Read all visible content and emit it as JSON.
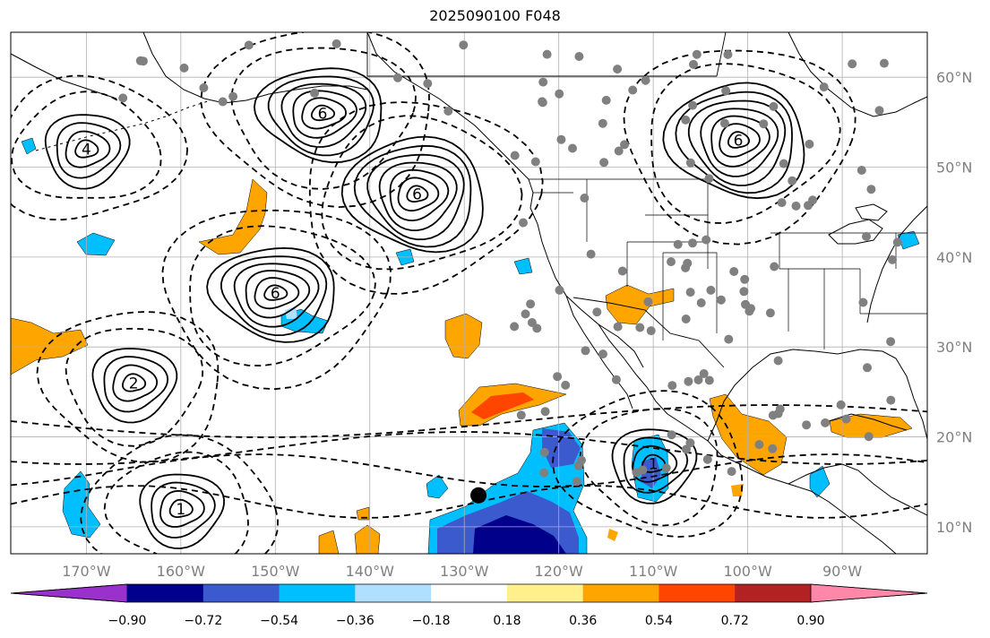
{
  "title": "2025090100 F048",
  "map": {
    "extent": {
      "lon": [
        -178,
        -81
      ],
      "lat": [
        7,
        65
      ]
    },
    "grid": true,
    "lon_ticks": [
      {
        "value": -170,
        "label": "170°W"
      },
      {
        "value": -160,
        "label": "160°W"
      },
      {
        "value": -150,
        "label": "150°W"
      },
      {
        "value": -140,
        "label": "140°W"
      },
      {
        "value": -130,
        "label": "130°W"
      },
      {
        "value": -120,
        "label": "120°W"
      },
      {
        "value": -110,
        "label": "110°W"
      },
      {
        "value": -100,
        "label": "100°W"
      },
      {
        "value": -90,
        "label": "90°W"
      }
    ],
    "lat_ticks": [
      {
        "value": 10,
        "label": "10°N"
      },
      {
        "value": 20,
        "label": "20°N"
      },
      {
        "value": 30,
        "label": "30°N"
      },
      {
        "value": 40,
        "label": "40°N"
      },
      {
        "value": 50,
        "label": "50°N"
      },
      {
        "value": 60,
        "label": "60°N"
      }
    ],
    "tick_color": "#808080",
    "highs": [
      {
        "lon": -170,
        "lat": 52,
        "label": "4"
      },
      {
        "lon": -135,
        "lat": 47,
        "label": "6"
      },
      {
        "lon": -101,
        "lat": 53,
        "label": "6"
      },
      {
        "lon": -165,
        "lat": 26,
        "label": "2"
      },
      {
        "lon": -110,
        "lat": 17,
        "label": "1"
      },
      {
        "lon": -160,
        "lat": 12,
        "label": "1"
      }
    ],
    "lows": [
      {
        "lon": -150,
        "lat": 36,
        "label": "6"
      },
      {
        "lon": -145,
        "lat": 56,
        "label": "6"
      }
    ],
    "marker": {
      "lon": -128.5,
      "lat": 13.5
    }
  },
  "colorbar": {
    "colors": [
      "#9932cc",
      "#00008b",
      "#3a5acd",
      "#00bfff",
      "#b0e0ff",
      "#ffffff",
      "#fff08c",
      "#ffa500",
      "#ff4500",
      "#b22222",
      "#ff88aa"
    ],
    "tick_labels": [
      "−0.90",
      "−0.72",
      "−0.54",
      "−0.36",
      "−0.18",
      "0.18",
      "0.36",
      "0.54",
      "0.72",
      "0.90"
    ]
  }
}
